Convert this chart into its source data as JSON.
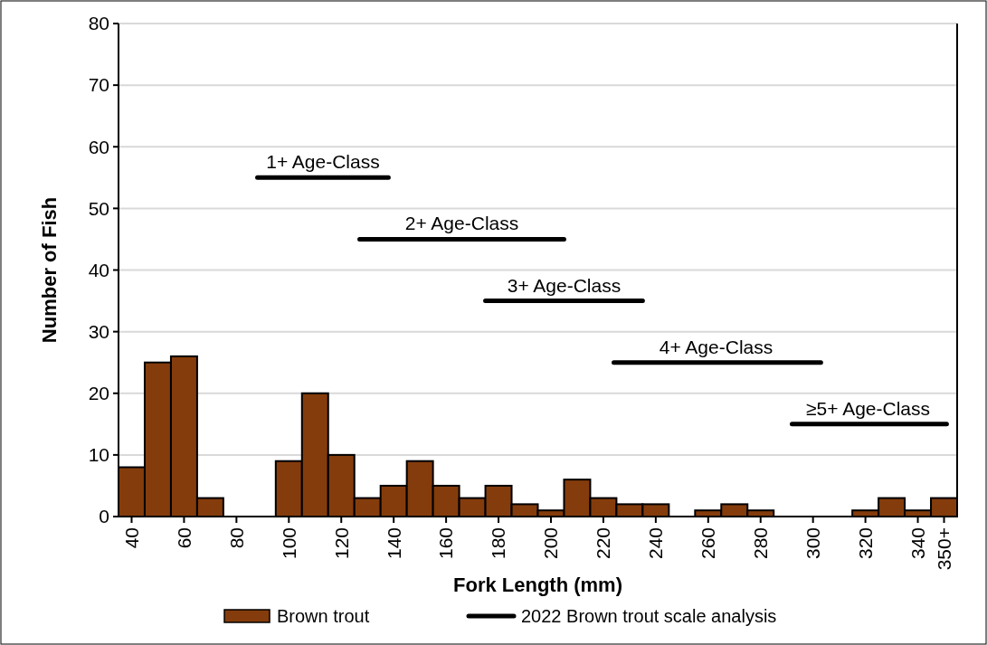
{
  "chart_data": {
    "type": "bar",
    "xlabel": "Fork Length (mm)",
    "ylabel": "Number of Fish",
    "x": [
      40,
      50,
      60,
      70,
      80,
      90,
      100,
      110,
      120,
      130,
      140,
      150,
      160,
      170,
      180,
      190,
      200,
      210,
      220,
      230,
      240,
      250,
      260,
      270,
      280,
      290,
      300,
      310,
      320,
      330,
      340,
      350
    ],
    "series": [
      {
        "name": "Brown trout",
        "color": "#843c0c",
        "values": [
          8,
          25,
          26,
          3,
          0,
          0,
          9,
          20,
          10,
          3,
          5,
          9,
          5,
          3,
          5,
          2,
          1,
          6,
          3,
          2,
          2,
          0,
          1,
          2,
          1,
          0,
          0,
          0,
          1,
          3,
          1,
          3
        ]
      },
      {
        "name": "2022 Brown trout scale analysis",
        "type": "line",
        "color": "#000000",
        "x": [
          88,
          138,
          null,
          127,
          205,
          null,
          175,
          235,
          null,
          224,
          303,
          null,
          292,
          351
        ],
        "values": [
          55,
          55,
          null,
          45,
          45,
          null,
          35,
          35,
          null,
          25,
          25,
          null,
          15,
          15
        ]
      }
    ],
    "annotations": [
      {
        "text": "1+ Age-Class",
        "x": 113,
        "y": 55
      },
      {
        "text": "2+ Age-Class",
        "x": 166,
        "y": 45
      },
      {
        "text": "3+ Age-Class",
        "x": 205,
        "y": 35
      },
      {
        "text": "4+ Age-Class",
        "x": 263,
        "y": 25
      },
      {
        "text": "≥5+ Age-Class",
        "x": 321,
        "y": 15
      }
    ],
    "xlim": [
      35,
      355
    ],
    "xticks": [
      40,
      60,
      80,
      100,
      120,
      140,
      160,
      180,
      200,
      220,
      240,
      260,
      280,
      300,
      320,
      340,
      {
        "value": 350,
        "label": "350+"
      }
    ],
    "ylim": [
      0,
      80
    ],
    "yticks": [
      0,
      10,
      20,
      30,
      40,
      50,
      60,
      70,
      80
    ],
    "grid": "y",
    "legend": "bottom",
    "marker": "none",
    "line_style": "solid"
  }
}
